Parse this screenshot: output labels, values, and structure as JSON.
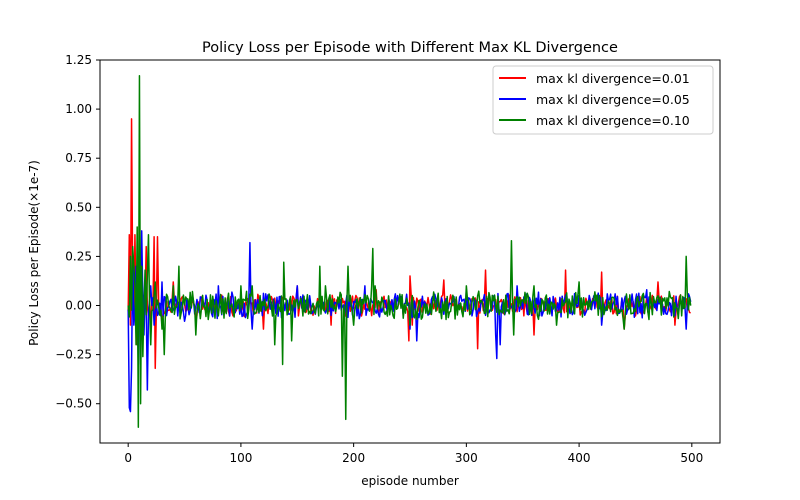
{
  "chart_data": {
    "type": "line",
    "title": "Policy Loss per Episode with Different Max KL Divergence",
    "xlabel": "episode number",
    "ylabel": "Policy Loss per Episode(×1e-7)",
    "xlim": [
      -25,
      525
    ],
    "ylim": [
      -0.7,
      1.25
    ],
    "xticks": [
      0,
      100,
      200,
      300,
      400,
      500
    ],
    "yticks": [
      -0.5,
      -0.25,
      0.0,
      0.25,
      0.5,
      0.75,
      1.0,
      1.25
    ],
    "ytick_labels": [
      "−0.50",
      "−0.25",
      "0.00",
      "0.25",
      "0.50",
      "0.75",
      "1.00",
      "1.25"
    ],
    "grid": false,
    "legend_position": "top-right",
    "series": [
      {
        "name": "max kl divergence=0.01",
        "color": "#ff0000",
        "seed": 11,
        "spikes": [
          [
            1,
            0.36
          ],
          [
            2,
            -0.1
          ],
          [
            3,
            0.95
          ],
          [
            4,
            0.12
          ],
          [
            5,
            -0.05
          ],
          [
            6,
            0.36
          ],
          [
            8,
            -0.2
          ],
          [
            10,
            0.25
          ],
          [
            12,
            -0.1
          ],
          [
            16,
            0.3
          ],
          [
            20,
            -0.15
          ],
          [
            23,
            0.35
          ],
          [
            24,
            -0.32
          ],
          [
            26,
            0.35
          ],
          [
            30,
            -0.1
          ],
          [
            40,
            0.12
          ],
          [
            60,
            -0.08
          ],
          [
            120,
            -0.12
          ],
          [
            150,
            0.1
          ],
          [
            180,
            -0.1
          ],
          [
            220,
            0.08
          ],
          [
            249,
            -0.18
          ],
          [
            250,
            0.15
          ],
          [
            252,
            -0.1
          ],
          [
            280,
            0.13
          ],
          [
            310,
            -0.22
          ],
          [
            317,
            0.18
          ],
          [
            360,
            -0.15
          ],
          [
            388,
            0.18
          ],
          [
            420,
            0.17
          ],
          [
            440,
            -0.12
          ],
          [
            470,
            0.12
          ],
          [
            485,
            -0.1
          ]
        ],
        "noise": 0.045
      },
      {
        "name": "max kl divergence=0.05",
        "color": "#0000ff",
        "seed": 23,
        "spikes": [
          [
            0,
            -0.02
          ],
          [
            1,
            -0.52
          ],
          [
            2,
            -0.54
          ],
          [
            3,
            -0.32
          ],
          [
            4,
            0.25
          ],
          [
            5,
            -0.1
          ],
          [
            7,
            0.2
          ],
          [
            9,
            -0.3
          ],
          [
            11,
            0.1
          ],
          [
            12,
            0.38
          ],
          [
            14,
            -0.15
          ],
          [
            17,
            -0.43
          ],
          [
            20,
            0.1
          ],
          [
            23,
            -0.1
          ],
          [
            30,
            0.12
          ],
          [
            50,
            -0.08
          ],
          [
            80,
            0.1
          ],
          [
            108,
            0.32
          ],
          [
            110,
            -0.12
          ],
          [
            150,
            0.1
          ],
          [
            180,
            -0.05
          ],
          [
            210,
            0.1
          ],
          [
            250,
            -0.12
          ],
          [
            256,
            -0.18
          ],
          [
            300,
            0.08
          ],
          [
            326,
            -0.15
          ],
          [
            327,
            -0.27
          ],
          [
            330,
            -0.2
          ],
          [
            345,
            0.1
          ],
          [
            400,
            0.05
          ],
          [
            420,
            -0.1
          ],
          [
            460,
            0.08
          ],
          [
            495,
            -0.12
          ]
        ],
        "noise": 0.055
      },
      {
        "name": "max kl divergence=0.10",
        "color": "#008000",
        "seed": 37,
        "spikes": [
          [
            0,
            0.0
          ],
          [
            2,
            0.25
          ],
          [
            4,
            0.3
          ],
          [
            5,
            0.2
          ],
          [
            6,
            0.1
          ],
          [
            7,
            -0.2
          ],
          [
            8,
            0.4
          ],
          [
            9,
            -0.62
          ],
          [
            10,
            1.17
          ],
          [
            11,
            -0.5
          ],
          [
            12,
            0.2
          ],
          [
            13,
            -0.26
          ],
          [
            15,
            0.18
          ],
          [
            17,
            0.15
          ],
          [
            18,
            0.36
          ],
          [
            20,
            -0.2
          ],
          [
            24,
            0.12
          ],
          [
            30,
            -0.12
          ],
          [
            32,
            -0.25
          ],
          [
            40,
            0.1
          ],
          [
            45,
            0.2
          ],
          [
            60,
            -0.15
          ],
          [
            100,
            0.1
          ],
          [
            110,
            0.1
          ],
          [
            130,
            -0.2
          ],
          [
            137,
            -0.3
          ],
          [
            138,
            0.22
          ],
          [
            145,
            -0.18
          ],
          [
            170,
            0.2
          ],
          [
            175,
            0.1
          ],
          [
            190,
            -0.36
          ],
          [
            193,
            -0.58
          ],
          [
            195,
            0.2
          ],
          [
            200,
            -0.1
          ],
          [
            216,
            0.1
          ],
          [
            217,
            0.29
          ],
          [
            219,
            0.1
          ],
          [
            250,
            -0.1
          ],
          [
            300,
            0.1
          ],
          [
            340,
            0.33
          ],
          [
            342,
            -0.15
          ],
          [
            360,
            0.1
          ],
          [
            380,
            -0.1
          ],
          [
            400,
            0.12
          ],
          [
            440,
            -0.12
          ],
          [
            495,
            0.25
          ],
          [
            498,
            0.04
          ]
        ],
        "noise": 0.06
      }
    ]
  }
}
